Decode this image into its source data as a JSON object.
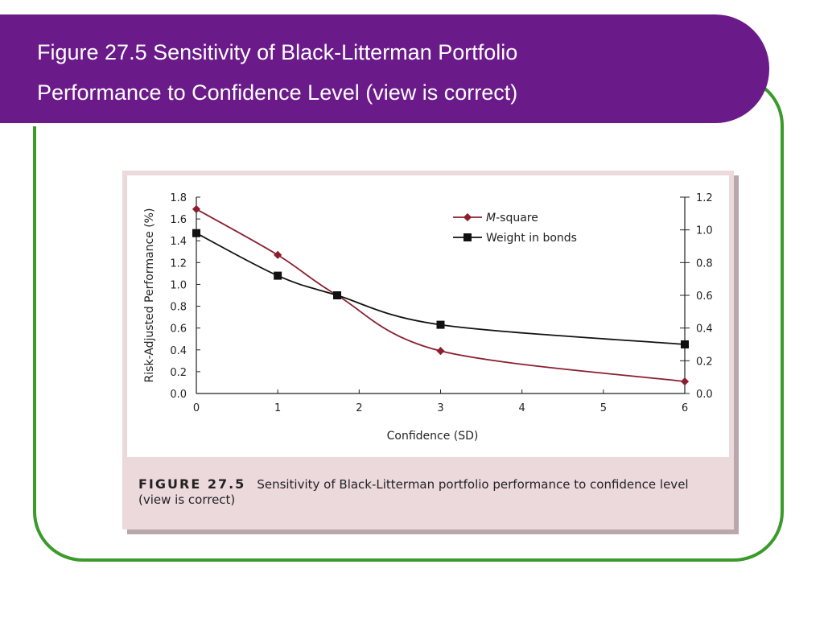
{
  "slide": {
    "title_line1": "Figure 27.5 Sensitivity of Black-Litterman Portfolio",
    "title_line2": "Performance to Confidence Level (view is correct)",
    "colors": {
      "title_bar": "#6b1a8a",
      "frame": "#3a9a2a",
      "panel": "#ecd9dc"
    }
  },
  "caption": {
    "label": "FIGURE 27.5",
    "text": "Sensitivity of Black-Litterman portfolio performance to confidence level (view is correct)"
  },
  "chart_data": {
    "type": "line",
    "title": "",
    "xlabel": "Confidence (SD)",
    "ylabel": "Risk-Adjusted Performance (%)",
    "y2label": "",
    "xlim": [
      0,
      6
    ],
    "ylim": [
      0,
      1.8
    ],
    "y2lim": [
      0,
      1.2
    ],
    "x_ticks": [
      "0",
      "1",
      "2",
      "3",
      "4",
      "5",
      "6"
    ],
    "y_ticks": [
      "0.0",
      "0.2",
      "0.4",
      "0.6",
      "0.8",
      "1.0",
      "1.2",
      "1.4",
      "1.6",
      "1.8"
    ],
    "y2_ticks": [
      "0.0",
      "0.2",
      "0.4",
      "0.6",
      "0.8",
      "1.0",
      "1.2"
    ],
    "grid": false,
    "legend_position": "top-right",
    "series": [
      {
        "name": "M-square",
        "name_italic": "M",
        "name_rest": "-square",
        "axis": "left",
        "marker": "diamond",
        "color": "#8b1f2e",
        "x": [
          0,
          1,
          1.73,
          3,
          6
        ],
        "y": [
          1.69,
          1.27,
          0.9,
          0.39,
          0.11
        ]
      },
      {
        "name": "Weight in bonds",
        "axis": "right",
        "marker": "square",
        "color": "#111111",
        "x": [
          0,
          1,
          1.73,
          3,
          6
        ],
        "y": [
          0.98,
          0.72,
          0.6,
          0.42,
          0.3
        ]
      }
    ]
  }
}
